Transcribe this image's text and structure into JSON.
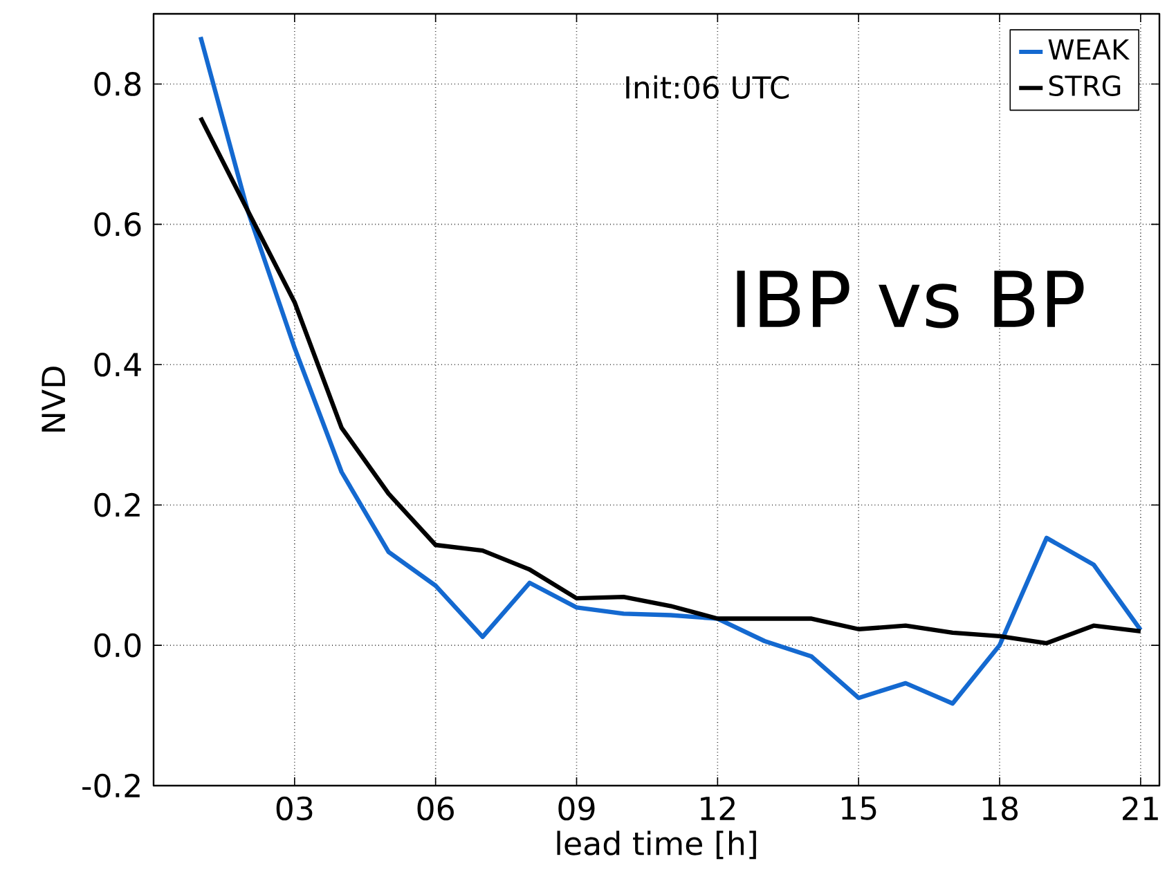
{
  "chart_data": {
    "type": "line",
    "annotations": [
      "Init:06 UTC",
      "IBP vs BP"
    ],
    "xlabel": "lead time [h]",
    "ylabel": "NVD",
    "x": [
      1,
      2,
      3,
      4,
      5,
      6,
      7,
      8,
      9,
      10,
      11,
      12,
      13,
      14,
      15,
      16,
      17,
      18,
      19,
      20,
      21
    ],
    "series": [
      {
        "name": "WEAK",
        "color": "#1469d0",
        "values": [
          0.867,
          0.62,
          0.424,
          0.247,
          0.133,
          0.085,
          0.012,
          0.089,
          0.054,
          0.045,
          0.043,
          0.038,
          0.006,
          -0.016,
          -0.075,
          -0.054,
          -0.083,
          0.0,
          0.153,
          0.115,
          0.022
        ]
      },
      {
        "name": "STRG",
        "color": "#000000",
        "values": [
          0.752,
          0.62,
          0.489,
          0.31,
          0.216,
          0.143,
          0.135,
          0.108,
          0.067,
          0.069,
          0.056,
          0.038,
          0.038,
          0.038,
          0.023,
          0.028,
          0.018,
          0.013,
          0.003,
          0.028,
          0.02
        ]
      }
    ],
    "xlim": [
      0,
      21.4
    ],
    "ylim": [
      -0.2,
      0.9
    ],
    "xticks": [
      {
        "value": 3,
        "label": "03"
      },
      {
        "value": 6,
        "label": "06"
      },
      {
        "value": 9,
        "label": "09"
      },
      12,
      15,
      18,
      21
    ],
    "yticks": [
      -0.2,
      {
        "value": 0,
        "label": "0.0"
      },
      0.2,
      0.4,
      0.6,
      0.8
    ],
    "grid": true,
    "legend": "top right",
    "marker": "none",
    "line_style": "solid"
  }
}
